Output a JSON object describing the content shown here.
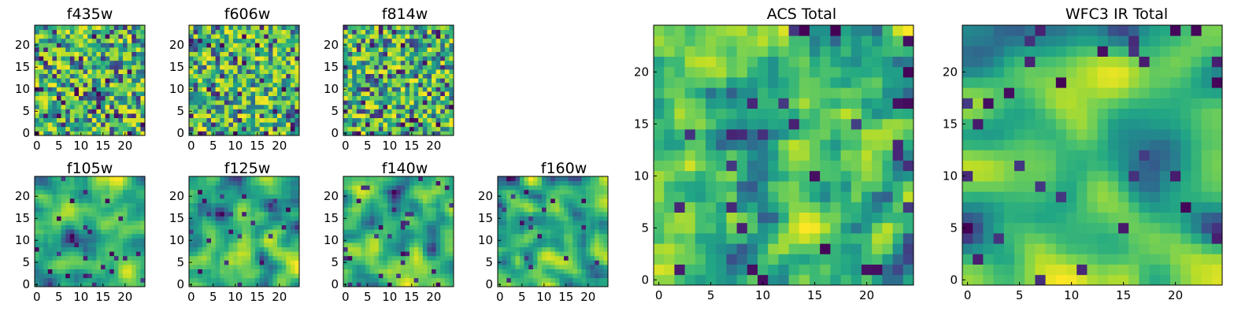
{
  "figure": {
    "seed": 7,
    "colormap": "viridis"
  },
  "chart_data": [
    {
      "type": "heatmap",
      "title": "f435w",
      "grid": [
        25,
        25
      ],
      "xlim": [
        0,
        24
      ],
      "ylim": [
        0,
        24
      ],
      "xticks": [
        0,
        5,
        10,
        15,
        20
      ],
      "yticks": [
        0,
        5,
        10,
        15,
        20
      ],
      "smoothness": 0,
      "texture": "noisy"
    },
    {
      "type": "heatmap",
      "title": "f606w",
      "grid": [
        25,
        25
      ],
      "xlim": [
        0,
        24
      ],
      "ylim": [
        0,
        24
      ],
      "xticks": [
        0,
        5,
        10,
        15,
        20
      ],
      "yticks": [
        0,
        5,
        10,
        15,
        20
      ],
      "smoothness": 0,
      "texture": "noisy"
    },
    {
      "type": "heatmap",
      "title": "f814w",
      "grid": [
        25,
        25
      ],
      "xlim": [
        0,
        24
      ],
      "ylim": [
        0,
        24
      ],
      "xticks": [
        0,
        5,
        10,
        15,
        20
      ],
      "yticks": [
        0,
        5,
        10,
        15,
        20
      ],
      "smoothness": 0,
      "texture": "noisy"
    },
    {
      "type": "heatmap",
      "title": "f105w",
      "grid": [
        25,
        25
      ],
      "xlim": [
        0,
        24
      ],
      "ylim": [
        0,
        24
      ],
      "xticks": [
        0,
        5,
        10,
        15,
        20
      ],
      "yticks": [
        0,
        5,
        10,
        15,
        20
      ],
      "smoothness": 2,
      "texture": "smooth"
    },
    {
      "type": "heatmap",
      "title": "f125w",
      "grid": [
        25,
        25
      ],
      "xlim": [
        0,
        24
      ],
      "ylim": [
        0,
        24
      ],
      "xticks": [
        0,
        5,
        10,
        15,
        20
      ],
      "yticks": [
        0,
        5,
        10,
        15,
        20
      ],
      "smoothness": 2,
      "texture": "smooth"
    },
    {
      "type": "heatmap",
      "title": "f140w",
      "grid": [
        25,
        25
      ],
      "xlim": [
        0,
        24
      ],
      "ylim": [
        0,
        24
      ],
      "xticks": [
        0,
        5,
        10,
        15,
        20
      ],
      "yticks": [
        0,
        5,
        10,
        15,
        20
      ],
      "smoothness": 2,
      "texture": "smooth"
    },
    {
      "type": "heatmap",
      "title": "f160w",
      "grid": [
        25,
        25
      ],
      "xlim": [
        0,
        24
      ],
      "ylim": [
        0,
        24
      ],
      "xticks": [
        0,
        5,
        10,
        15,
        20
      ],
      "yticks": [
        0,
        5,
        10,
        15,
        20
      ],
      "smoothness": 2,
      "texture": "smooth"
    },
    {
      "type": "heatmap",
      "title": "ACS Total",
      "grid": [
        25,
        25
      ],
      "xlim": [
        0,
        24
      ],
      "ylim": [
        0,
        24
      ],
      "xticks": [
        0,
        5,
        10,
        15,
        20
      ],
      "yticks": [
        0,
        5,
        10,
        15,
        20
      ],
      "smoothness": 1,
      "texture": "medium"
    },
    {
      "type": "heatmap",
      "title": "WFC3 IR Total",
      "grid": [
        25,
        25
      ],
      "xlim": [
        0,
        24
      ],
      "ylim": [
        0,
        24
      ],
      "xticks": [
        0,
        5,
        10,
        15,
        20
      ],
      "yticks": [
        0,
        5,
        10,
        15,
        20
      ],
      "smoothness": 3,
      "texture": "smooth"
    }
  ]
}
